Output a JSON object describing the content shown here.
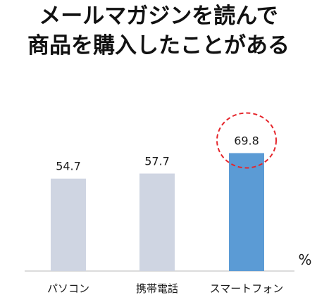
{
  "chart_data": {
    "type": "bar",
    "title": "メールマガジンを読んで商品を購入したことがある",
    "title_lines": [
      "メールマガジンを読んで",
      "商品を購入したことがある"
    ],
    "categories": [
      "パソコン",
      "携帯電話",
      "スマートフォン"
    ],
    "values": [
      54.7,
      57.7,
      69.8
    ],
    "data_labels": [
      "54.7",
      "57.7",
      "69.8"
    ],
    "unit": "%",
    "ylim": [
      0,
      100
    ],
    "grid": false,
    "bar_colors": [
      "#cfd5e2",
      "#cfd5e2",
      "#5b9bd5"
    ],
    "highlight": {
      "category": "スマートフォン",
      "style": "dashed-circle",
      "color": "#e5262c"
    }
  }
}
